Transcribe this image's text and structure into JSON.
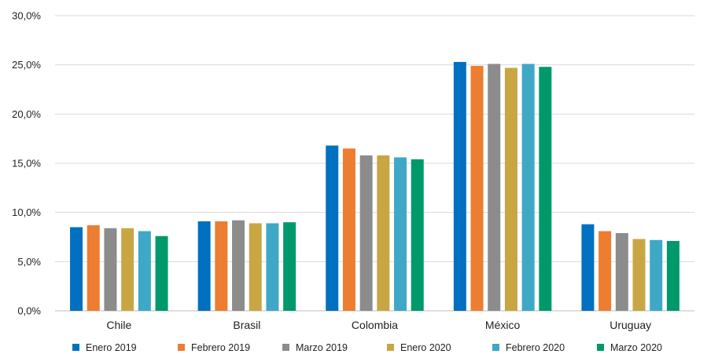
{
  "chart_data": {
    "type": "bar",
    "title": "",
    "xlabel": "",
    "ylabel": "",
    "categories": [
      "Chile",
      "Brasil",
      "Colombia",
      "México",
      "Uruguay"
    ],
    "ylim": [
      0,
      30
    ],
    "yticks": [
      0,
      5,
      10,
      15,
      20,
      25,
      30
    ],
    "ytick_labels": [
      "0,0%",
      "5,0%",
      "10,0%",
      "15,0%",
      "20,0%",
      "25,0%",
      "30,0%"
    ],
    "grid": "horizontal",
    "legend_position": "bottom",
    "series": [
      {
        "name": "Enero 2019",
        "color": "#0070c0",
        "values": [
          8.5,
          9.1,
          16.8,
          25.3,
          8.8
        ]
      },
      {
        "name": "Febrero 2019",
        "color": "#ed7d31",
        "values": [
          8.7,
          9.1,
          16.5,
          24.9,
          8.1
        ]
      },
      {
        "name": "Marzo 2019",
        "color": "#8c8c8c",
        "values": [
          8.4,
          9.2,
          15.8,
          25.1,
          7.9
        ]
      },
      {
        "name": "Enero 2020",
        "color": "#c9a644",
        "values": [
          8.4,
          8.9,
          15.8,
          24.7,
          7.3
        ]
      },
      {
        "name": "Febrero 2020",
        "color": "#3ea8c6",
        "values": [
          8.1,
          8.9,
          15.6,
          25.1,
          7.2
        ]
      },
      {
        "name": "Marzo 2020",
        "color": "#00996b",
        "values": [
          7.6,
          9.0,
          15.4,
          24.8,
          7.1
        ]
      }
    ]
  }
}
